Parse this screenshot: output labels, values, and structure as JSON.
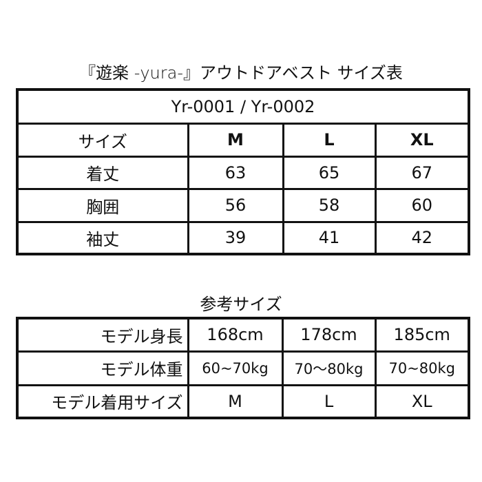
{
  "title": "『遊楽 -yura-』アウトドアベスト サイズ表",
  "size_table": {
    "model_codes": "Yr-0001 / Yr-0002",
    "header": [
      "サイズ",
      "M",
      "L",
      "XL"
    ],
    "rows": [
      {
        "label": "着丈",
        "values": [
          "63",
          "65",
          "67"
        ]
      },
      {
        "label": "胸囲",
        "values": [
          "56",
          "58",
          "60"
        ]
      },
      {
        "label": "袖丈",
        "values": [
          "39",
          "41",
          "42"
        ]
      }
    ]
  },
  "reference_title": "参考サイズ",
  "reference_table": {
    "rows": [
      {
        "label": "モデル身長",
        "values": [
          "168cm",
          "178cm",
          "185cm"
        ]
      },
      {
        "label": "モデル体重",
        "values": [
          "60~70kg",
          "70〜80kg",
          "70~80kg"
        ]
      },
      {
        "label": "モデル着用サイズ",
        "values": [
          "M",
          "L",
          "XL"
        ]
      }
    ]
  }
}
